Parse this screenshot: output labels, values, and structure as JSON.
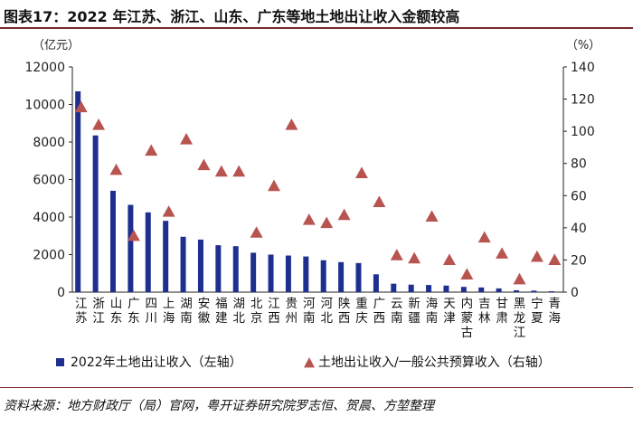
{
  "title": "图表17：2022 年江苏、浙江、山东、广东等地土地出让收入金额较高",
  "source": "资料来源：地方财政厅（局）官网，粤开证券研究院罗志恒、贺晨、方堃整理",
  "colors": {
    "bar": "#1f2f8f",
    "marker": "#b85450",
    "axis": "#222222",
    "rule": "#7a2a2a"
  },
  "chart_data": {
    "type": "bar",
    "title": "图表17：2022 年江苏、浙江、山东、广东等地土地出让收入金额较高",
    "categories": [
      "江苏",
      "浙江",
      "山东",
      "广东",
      "四川",
      "上海",
      "湖南",
      "安徽",
      "福建",
      "湖北",
      "北京",
      "江西",
      "贵州",
      "河南",
      "河北",
      "陕西",
      "重庆",
      "广西",
      "云南",
      "新疆",
      "海南",
      "天津",
      "内蒙古",
      "吉林",
      "甘肃",
      "黑龙江",
      "宁夏",
      "青海"
    ],
    "left_axis": {
      "unit_label": "（亿元）",
      "ylim": [
        0,
        12000
      ],
      "ticks": [
        0,
        2000,
        4000,
        6000,
        8000,
        10000,
        12000
      ]
    },
    "right_axis": {
      "unit_label": "（%）",
      "ylim": [
        0,
        140
      ],
      "ticks": [
        0,
        20,
        40,
        60,
        80,
        100,
        120,
        140
      ]
    },
    "series": [
      {
        "name": "2022年土地出让收入（左轴）",
        "kind": "bar",
        "axis": "left",
        "values": [
          10700,
          8350,
          5400,
          4650,
          4250,
          3800,
          2950,
          2800,
          2500,
          2450,
          2100,
          2000,
          1950,
          1900,
          1700,
          1600,
          1550,
          950,
          450,
          400,
          380,
          350,
          280,
          250,
          200,
          100,
          80,
          50
        ]
      },
      {
        "name": "土地出让收入/一般公共预算收入（右轴）",
        "kind": "triangle",
        "axis": "right",
        "values": [
          115,
          104,
          76,
          35,
          88,
          50,
          95,
          79,
          75,
          75,
          37,
          66,
          104,
          45,
          43,
          48,
          74,
          56,
          23,
          21,
          47,
          20,
          11,
          34,
          24,
          8,
          22,
          20
        ]
      }
    ],
    "grid": false,
    "legend_position": "bottom"
  }
}
